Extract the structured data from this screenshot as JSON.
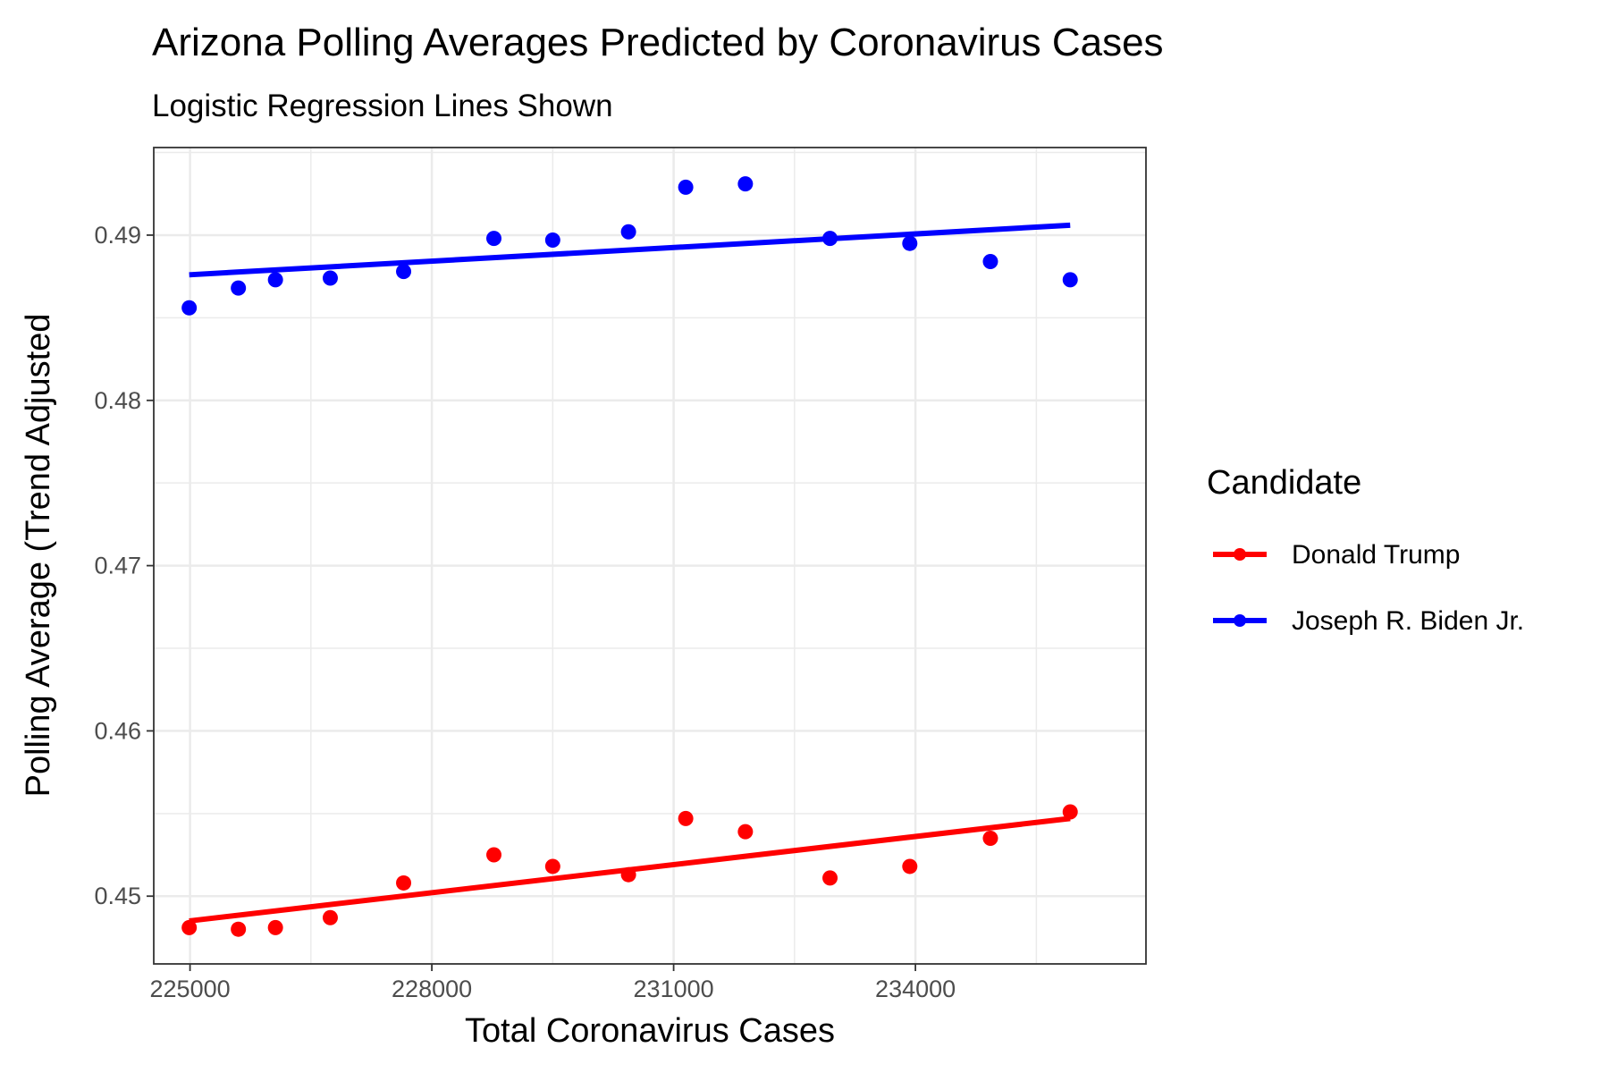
{
  "chart_data": {
    "type": "scatter",
    "title": "Arizona Polling Averages Predicted by Coronavirus Cases",
    "subtitle": "Logistic Regression Lines Shown",
    "xlabel": "Total Coronavirus Cases",
    "ylabel": "Polling Average (Trend Adjusted",
    "xlim": [
      224550,
      236860
    ],
    "ylim": [
      0.4459,
      0.4953
    ],
    "x_ticks": [
      225000,
      228000,
      231000,
      234000
    ],
    "y_ticks": [
      0.45,
      0.46,
      0.47,
      0.48,
      0.49
    ],
    "grid": true,
    "legend": {
      "title": "Candidate",
      "position": "right"
    },
    "series": [
      {
        "name": "Donald Trump",
        "color": "#ff0000",
        "x": [
          224990,
          225600,
          226060,
          226740,
          227650,
          228770,
          229500,
          230440,
          231150,
          231890,
          232940,
          233930,
          234930,
          235920
        ],
        "y": [
          0.4481,
          0.448,
          0.4481,
          0.4487,
          0.4508,
          0.4525,
          0.4518,
          0.4513,
          0.4547,
          0.4539,
          0.4511,
          0.4518,
          0.4535,
          0.4551
        ],
        "fit": [
          [
            224990,
            0.4485
          ],
          [
            235920,
            0.4547
          ]
        ]
      },
      {
        "name": "Joseph R. Biden Jr.",
        "color": "#0000ff",
        "x": [
          224990,
          225600,
          226060,
          226740,
          227650,
          228770,
          229500,
          230440,
          231150,
          231890,
          232940,
          233930,
          234930,
          235920
        ],
        "y": [
          0.4856,
          0.4868,
          0.4873,
          0.4874,
          0.4878,
          0.4898,
          0.4897,
          0.4902,
          0.4929,
          0.4931,
          0.4898,
          0.4895,
          0.4884,
          0.4873
        ],
        "fit": [
          [
            224990,
            0.4876
          ],
          [
            235920,
            0.4906
          ]
        ]
      }
    ]
  }
}
